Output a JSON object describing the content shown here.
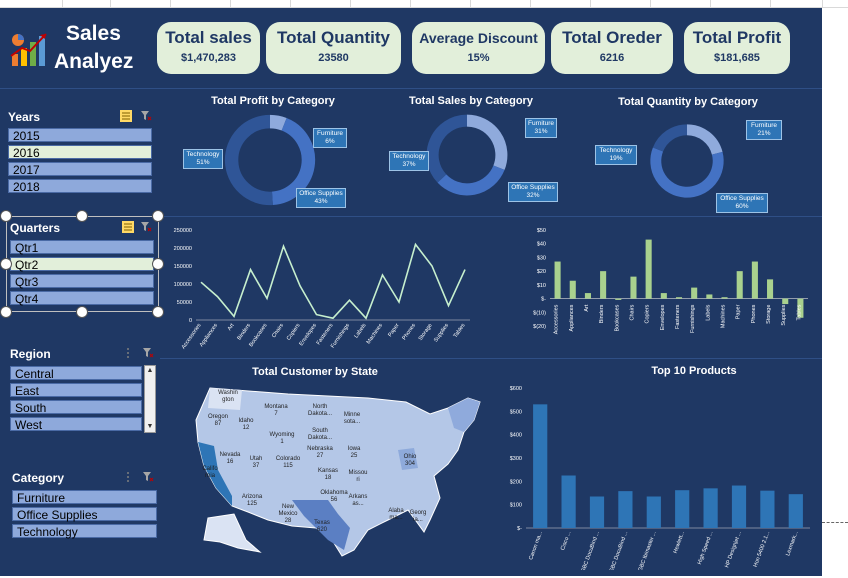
{
  "header": {
    "title_line1": "Sales",
    "title_line2": "Analyez"
  },
  "kpis": [
    {
      "label": "Total sales",
      "value": "$1,470,283"
    },
    {
      "label": "Total Quantity",
      "value": "23580"
    },
    {
      "label": "Average Discount",
      "value": "15%"
    },
    {
      "label": "Total Oreder",
      "value": "6216"
    },
    {
      "label": "Total Profit",
      "value": "$181,685"
    }
  ],
  "slicers": {
    "years": {
      "title": "Years",
      "items": [
        "2015",
        "2016",
        "2017",
        "2018"
      ],
      "selected": "2016"
    },
    "quarters": {
      "title": "Quarters",
      "items": [
        "Qtr1",
        "Qtr2",
        "Qtr3",
        "Qtr4"
      ],
      "selected": "Qtr2"
    },
    "region": {
      "title": "Region",
      "items": [
        "Central",
        "East",
        "South",
        "West"
      ]
    },
    "category": {
      "title": "Category",
      "items": [
        "Furniture",
        "Office Supplies",
        "Technology"
      ]
    }
  },
  "donuts": [
    {
      "title": "Total Profit by Category",
      "labels": [
        {
          "name": "Furniture",
          "pct": "6%"
        },
        {
          "name": "Technology",
          "pct": "51%"
        },
        {
          "name": "Office Supplies",
          "pct": "43%"
        }
      ],
      "values": [
        6,
        43,
        51
      ]
    },
    {
      "title": "Total Sales by Category",
      "labels": [
        {
          "name": "Furniture",
          "pct": "31%"
        },
        {
          "name": "Technology",
          "pct": "37%"
        },
        {
          "name": "Office Supplies",
          "pct": "32%"
        }
      ],
      "values": [
        31,
        32,
        37
      ]
    },
    {
      "title": "Total Quantity by Category",
      "labels": [
        {
          "name": "Furniture",
          "pct": "21%"
        },
        {
          "name": "Technology",
          "pct": "19%"
        },
        {
          "name": "Office Supplies",
          "pct": "60%"
        }
      ],
      "values": [
        21,
        60,
        19
      ]
    }
  ],
  "chart_data": [
    {
      "type": "line",
      "categories": [
        "Accessories",
        "Appliances",
        "Art",
        "Binders",
        "Bookcases",
        "Chairs",
        "Copiers",
        "Envelopes",
        "Fasteners",
        "Furnishings",
        "Labels",
        "Machines",
        "Paper",
        "Phones",
        "Storage",
        "Supplies",
        "Tables"
      ],
      "values": [
        105000,
        65000,
        10000,
        140000,
        60000,
        205000,
        95000,
        15000,
        5000,
        55000,
        5000,
        125000,
        50000,
        210000,
        150000,
        40000,
        140000
      ],
      "yticks": [
        "250000",
        "200000",
        "150000",
        "100000",
        "50000",
        "0"
      ],
      "ylim": [
        0,
        250000
      ]
    },
    {
      "type": "bar",
      "categories": [
        "Accessories",
        "Appliances",
        "Art",
        "Binders",
        "Bookcases",
        "Chairs",
        "Copiers",
        "Envelopes",
        "Fasteners",
        "Furnishings",
        "Labels",
        "Machines",
        "Paper",
        "Phones",
        "Storage",
        "Supplies",
        "Tables"
      ],
      "values": [
        27,
        13,
        4,
        20,
        -1,
        16,
        43,
        4,
        1,
        8,
        3,
        1,
        20,
        27,
        14,
        -4,
        -14
      ],
      "yticks": [
        "$50",
        "$40",
        "$30",
        "$20",
        "$10",
        "$-",
        "$(10)",
        "$(20)"
      ],
      "ylim": [
        -20,
        50
      ]
    },
    {
      "type": "bar",
      "title": "Top 10 Products",
      "categories": [
        "Canon ma...",
        "Cisco ...",
        "GBC DocuBind ...",
        "GBC DocuBind ...",
        "GBC Ibimaster ...",
        "Hewlett...",
        "High Speed ...",
        "HP Designjet ...",
        "Hon 5400 2.1...",
        "Lexmark..."
      ],
      "values": [
        530,
        225,
        135,
        158,
        135,
        162,
        170,
        182,
        160,
        145
      ],
      "yticks": [
        "$600",
        "$500",
        "$400",
        "$300",
        "$200",
        "$100",
        "$-"
      ],
      "ylim": [
        0,
        600
      ]
    }
  ],
  "map": {
    "title": "Total Customer by State",
    "states": [
      {
        "name": "Washin gton",
        "value": ""
      },
      {
        "name": "Oregon",
        "value": "87"
      },
      {
        "name": "Idaho",
        "value": "12"
      },
      {
        "name": "Montana",
        "value": "7"
      },
      {
        "name": "North Dakota...",
        "value": ""
      },
      {
        "name": "Minne sota...",
        "value": ""
      },
      {
        "name": "South Dakota...",
        "value": ""
      },
      {
        "name": "Wyoming",
        "value": "1"
      },
      {
        "name": "Nevada",
        "value": "16"
      },
      {
        "name": "Utah",
        "value": "37"
      },
      {
        "name": "Colorado",
        "value": "115"
      },
      {
        "name": "Nebraska",
        "value": "27"
      },
      {
        "name": "Iowa",
        "value": "25"
      },
      {
        "name": "Califo rnia",
        "value": ""
      },
      {
        "name": "Kansas",
        "value": "18"
      },
      {
        "name": "Missou ri",
        "value": ""
      },
      {
        "name": "Ohio",
        "value": "304"
      },
      {
        "name": "Arizona",
        "value": "125"
      },
      {
        "name": "New Mexico",
        "value": "28"
      },
      {
        "name": "Oklahoma",
        "value": "56"
      },
      {
        "name": "Arkans as...",
        "value": ""
      },
      {
        "name": "Texas",
        "value": "620"
      },
      {
        "name": "Alaba ma...",
        "value": ""
      },
      {
        "name": "Georg ia...",
        "value": ""
      }
    ]
  },
  "colors": {
    "background": "#1f3864",
    "kpi_card": "#e2efda",
    "slicer_on": "#e2efda",
    "slicer_off": "#8ea9db",
    "line": "#c6efce",
    "bar_green": "#a9d18e",
    "bar_blue": "#2e75b6"
  }
}
